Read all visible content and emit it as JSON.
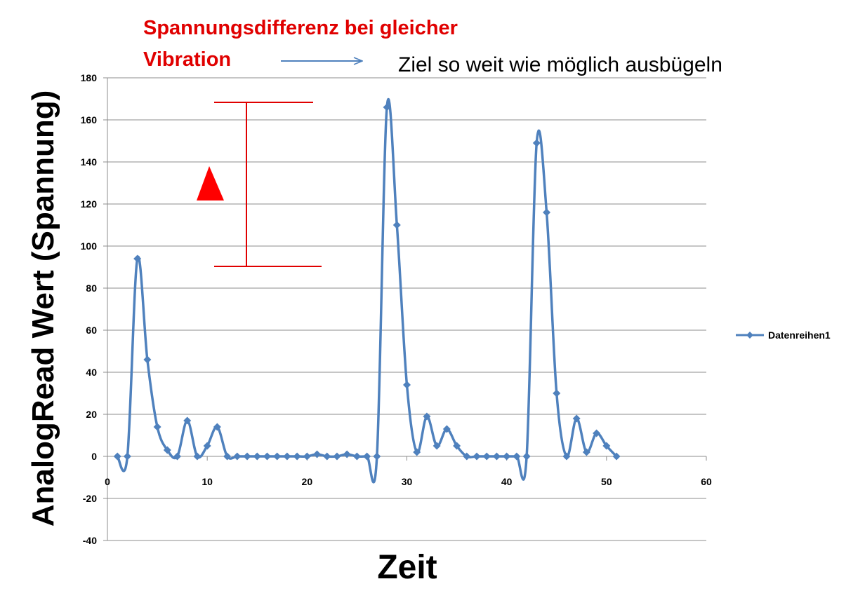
{
  "annotation": {
    "red_title_line1": "Spannungsdifferenz bei gleicher",
    "red_title_line2": "Vibration",
    "note": "Ziel so weit wie möglich ausbügeln"
  },
  "colors": {
    "series": "#4f81bd",
    "annotation": "#e00000",
    "grid": "#8c8c8c",
    "axis": "#8c8c8c"
  },
  "chart_data": {
    "type": "line",
    "title": "",
    "xlabel": "Zeit",
    "ylabel": "AnalogRead Wert (Spannung)",
    "xlim": [
      0,
      60
    ],
    "ylim": [
      -40,
      180
    ],
    "x_ticks": [
      0,
      10,
      20,
      30,
      40,
      50,
      60
    ],
    "y_ticks": [
      -40,
      -20,
      0,
      20,
      40,
      60,
      80,
      100,
      120,
      140,
      160,
      180
    ],
    "grid": true,
    "smooth": true,
    "legend": "right",
    "series": [
      {
        "name": "Datenreihen1",
        "x": [
          1,
          2,
          3,
          4,
          5,
          6,
          7,
          8,
          9,
          10,
          11,
          12,
          13,
          14,
          15,
          16,
          17,
          18,
          19,
          20,
          21,
          22,
          23,
          24,
          25,
          26,
          27,
          28,
          29,
          30,
          31,
          32,
          33,
          34,
          35,
          36,
          37,
          38,
          39,
          40,
          41,
          42,
          43,
          44,
          45,
          46,
          47,
          48,
          49,
          50,
          51
        ],
        "y": [
          0,
          0,
          94,
          46,
          14,
          3,
          0,
          17,
          0,
          5,
          14,
          0,
          0,
          0,
          0,
          0,
          0,
          0,
          0,
          0,
          1,
          0,
          0,
          1,
          0,
          0,
          0,
          166,
          110,
          34,
          2,
          19,
          5,
          13,
          5,
          0,
          0,
          0,
          0,
          0,
          0,
          0,
          149,
          116,
          30,
          0,
          18,
          2,
          11,
          5,
          0
        ]
      }
    ],
    "annotations": [
      {
        "type": "range-bar",
        "x": 14,
        "y_top": 168,
        "y_bottom": 90
      },
      {
        "type": "delta-triangle",
        "label": ""
      }
    ]
  }
}
